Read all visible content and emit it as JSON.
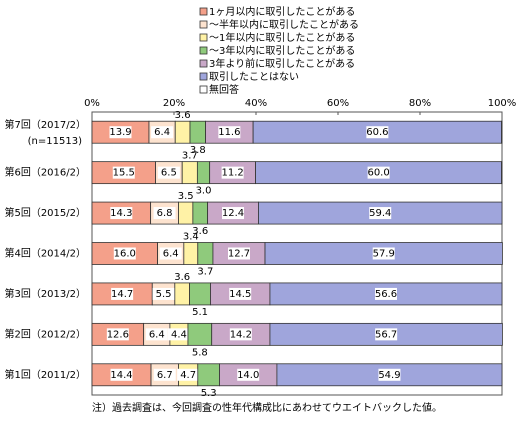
{
  "chart_data": {
    "type": "stacked_bar_horizontal",
    "categories": [
      "第7回（2017/2）",
      "第6回（2016/2）",
      "第5回（2015/2）",
      "第4回（2014/2）",
      "第3回（2013/2）",
      "第2回（2012/2）",
      "第1回（2011/2）"
    ],
    "category_note": "(n=11513)",
    "series": [
      {
        "name": "1ヶ月以内に取引したことがある",
        "color": "#f4a08a",
        "values": [
          13.9,
          15.5,
          14.3,
          16.0,
          14.7,
          12.6,
          14.4
        ],
        "value_labels": [
          "13.9",
          "15.5",
          "14.3",
          "16.0",
          "14.7",
          "12.6",
          "14.4"
        ]
      },
      {
        "name": "～半年以内に取引したことがある",
        "color": "#fde3cf",
        "values": [
          6.4,
          6.5,
          6.8,
          6.4,
          5.5,
          6.4,
          6.7
        ],
        "value_labels": [
          "6.4",
          "6.5",
          "6.8",
          "6.4",
          "5.5",
          "6.4",
          "6.7"
        ]
      },
      {
        "name": "～1年以内に取引したことがある",
        "color": "#fff2a6",
        "values": [
          3.6,
          3.7,
          3.5,
          3.4,
          3.6,
          4.4,
          4.7
        ],
        "value_labels": [
          "3.6",
          "3.7",
          "3.5",
          "3.4",
          "3.6",
          "4.4",
          "4.7"
        ]
      },
      {
        "name": "～3年以内に取引したことがある",
        "color": "#8fca7c",
        "values": [
          3.8,
          3.0,
          3.6,
          3.7,
          5.1,
          5.8,
          5.3
        ],
        "value_labels": [
          "3.8",
          "3.0",
          "3.6",
          "3.7",
          "5.1",
          "5.8",
          "5.3"
        ]
      },
      {
        "name": "3年より前に取引したことがある",
        "color": "#c9a8c8",
        "values": [
          11.6,
          11.2,
          12.4,
          12.7,
          14.5,
          14.2,
          14.0
        ],
        "value_labels": [
          "11.6",
          "11.2",
          "12.4",
          "12.7",
          "14.5",
          "14.2",
          "14.0"
        ]
      },
      {
        "name": "取引したことはない",
        "color": "#9fa5dc",
        "values": [
          60.6,
          60.0,
          59.4,
          57.9,
          56.6,
          56.7,
          54.9
        ],
        "value_labels": [
          "60.6",
          "60.0",
          "59.4",
          "57.9",
          "56.6",
          "56.7",
          "54.9"
        ]
      },
      {
        "name": "無回答",
        "color": "#ffffff",
        "values": [
          0.1,
          0.1,
          0,
          0,
          0,
          0,
          0
        ]
      }
    ],
    "xlim": [
      0,
      100
    ],
    "xticks": [
      {
        "value": 0,
        "label": "0%"
      },
      {
        "value": 20,
        "label": "20%"
      },
      {
        "value": 40,
        "label": "40%"
      },
      {
        "value": 60,
        "label": "60%"
      },
      {
        "value": 80,
        "label": "80%"
      },
      {
        "value": 100,
        "label": "100%"
      }
    ],
    "footnote": "注）過去調査は、今回調査の性年代構成比にあわせてウエイトバックした値。"
  }
}
